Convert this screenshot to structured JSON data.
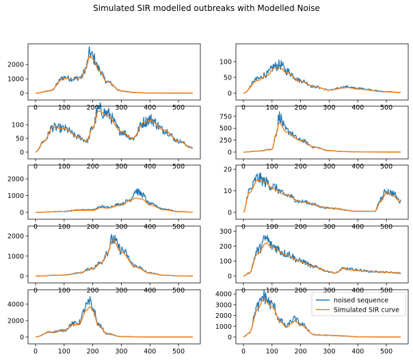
{
  "title": "Simulated SIR modelled outbreaks with Modelled Noise",
  "colors": {
    "noised": "#1f77b4",
    "sir": "#ff7f0e",
    "frame": "#000000"
  },
  "legend": {
    "placement": "top-right of last subplot",
    "entries": [
      "noised sequence",
      "Simulated SIR curve"
    ]
  },
  "chart_data": [
    {
      "type": "line",
      "xlim": [
        0,
        550
      ],
      "xticks": [
        0,
        100,
        200,
        300,
        400,
        500
      ],
      "ylim": [
        0,
        3300
      ],
      "yticks": [
        0,
        1000,
        2000
      ],
      "series": [
        {
          "name": "noised sequence",
          "noisy": true,
          "x": [
            0,
            50,
            100,
            130,
            160,
            175,
            190,
            205,
            220,
            250,
            300,
            350,
            400,
            500,
            550
          ],
          "y": [
            0,
            160,
            1100,
            1000,
            1100,
            1700,
            2800,
            2400,
            1700,
            800,
            150,
            40,
            10,
            0,
            0
          ]
        },
        {
          "name": "Simulated SIR curve",
          "x": [
            0,
            50,
            100,
            130,
            160,
            175,
            190,
            205,
            220,
            250,
            300,
            350,
            400,
            500,
            550
          ],
          "y": [
            0,
            160,
            1050,
            950,
            1100,
            1700,
            2600,
            2300,
            1600,
            800,
            150,
            40,
            10,
            0,
            0
          ]
        }
      ]
    },
    {
      "type": "line",
      "xlim": [
        0,
        550
      ],
      "xticks": [
        0,
        100,
        200,
        300,
        400,
        500
      ],
      "ylim": [
        0,
        150
      ],
      "yticks": [
        0,
        50,
        100
      ],
      "series": [
        {
          "name": "noised sequence",
          "noisy": true,
          "x": [
            0,
            50,
            80,
            110,
            130,
            150,
            200,
            250,
            300,
            360,
            400,
            500,
            550
          ],
          "y": [
            0,
            45,
            60,
            85,
            90,
            70,
            40,
            20,
            10,
            20,
            15,
            5,
            2
          ]
        },
        {
          "name": "Simulated SIR curve",
          "x": [
            0,
            50,
            80,
            110,
            130,
            150,
            200,
            250,
            300,
            360,
            400,
            500,
            550
          ],
          "y": [
            0,
            40,
            55,
            80,
            80,
            65,
            38,
            20,
            10,
            18,
            13,
            4,
            2
          ]
        }
      ]
    },
    {
      "type": "line",
      "xlim": [
        0,
        550
      ],
      "xticks": [
        0,
        100,
        200,
        300,
        400,
        500
      ],
      "ylim": [
        0,
        160
      ],
      "yticks": [
        0,
        50,
        100
      ],
      "series": [
        {
          "name": "noised sequence",
          "noisy": true,
          "x": [
            0,
            30,
            60,
            100,
            150,
            180,
            200,
            220,
            250,
            300,
            340,
            380,
            400,
            450,
            500,
            550
          ],
          "y": [
            0,
            40,
            90,
            85,
            55,
            40,
            90,
            155,
            140,
            75,
            50,
            110,
            120,
            80,
            40,
            15
          ]
        },
        {
          "name": "Simulated SIR curve",
          "x": [
            0,
            30,
            60,
            100,
            150,
            180,
            200,
            220,
            250,
            300,
            340,
            380,
            400,
            450,
            500,
            550
          ],
          "y": [
            0,
            40,
            90,
            85,
            55,
            40,
            90,
            150,
            135,
            75,
            50,
            110,
            115,
            80,
            40,
            15
          ]
        }
      ]
    },
    {
      "type": "line",
      "xlim": [
        0,
        550
      ],
      "xticks": [
        0,
        100,
        200,
        300,
        400,
        500
      ],
      "ylim": [
        0,
        920
      ],
      "yticks": [
        0,
        250,
        500,
        750
      ],
      "series": [
        {
          "name": "noised sequence",
          "noisy": true,
          "x": [
            0,
            50,
            100,
            115,
            125,
            150,
            200,
            250,
            300,
            350,
            400,
            500,
            550
          ],
          "y": [
            0,
            20,
            60,
            400,
            750,
            450,
            250,
            100,
            30,
            10,
            5,
            0,
            0
          ]
        },
        {
          "name": "Simulated SIR curve",
          "x": [
            0,
            50,
            100,
            115,
            125,
            150,
            200,
            250,
            300,
            350,
            400,
            500,
            550
          ],
          "y": [
            0,
            20,
            60,
            380,
            620,
            420,
            240,
            100,
            30,
            10,
            5,
            0,
            0
          ]
        }
      ]
    },
    {
      "type": "line",
      "xlim": [
        0,
        550
      ],
      "xticks": [
        0,
        100,
        200,
        300,
        400,
        500
      ],
      "ylim": [
        0,
        2700
      ],
      "yticks": [
        0,
        1000,
        2000
      ],
      "series": [
        {
          "name": "noised sequence",
          "noisy": true,
          "x": [
            0,
            100,
            150,
            200,
            230,
            250,
            300,
            330,
            350,
            370,
            400,
            450,
            500,
            550
          ],
          "y": [
            0,
            60,
            150,
            150,
            350,
            300,
            500,
            750,
            1300,
            1100,
            500,
            200,
            50,
            10
          ]
        },
        {
          "name": "Simulated SIR curve",
          "x": [
            0,
            100,
            150,
            200,
            230,
            250,
            300,
            330,
            350,
            370,
            400,
            450,
            500,
            550
          ],
          "y": [
            0,
            50,
            120,
            120,
            280,
            250,
            450,
            700,
            850,
            800,
            450,
            150,
            40,
            10
          ]
        }
      ]
    },
    {
      "type": "line",
      "xlim": [
        0,
        550
      ],
      "xticks": [
        0,
        100,
        200,
        300,
        400,
        500
      ],
      "ylim": [
        0,
        21
      ],
      "yticks": [
        0,
        10,
        20
      ],
      "series": [
        {
          "name": "noised sequence",
          "noisy": true,
          "x": [
            0,
            20,
            50,
            80,
            100,
            150,
            200,
            300,
            400,
            460,
            480,
            500,
            520,
            550
          ],
          "y": [
            0,
            10,
            16,
            14,
            12,
            8,
            5,
            2,
            0.5,
            0.5,
            6,
            10,
            9,
            5
          ]
        },
        {
          "name": "Simulated SIR curve",
          "x": [
            0,
            20,
            50,
            80,
            100,
            150,
            200,
            300,
            400,
            460,
            480,
            500,
            520,
            550
          ],
          "y": [
            0,
            9,
            15,
            14,
            11,
            8,
            5,
            2,
            0.5,
            0.5,
            5,
            9,
            8,
            5
          ]
        }
      ]
    },
    {
      "type": "line",
      "xlim": [
        0,
        550
      ],
      "xticks": [
        0,
        100,
        200,
        300,
        400,
        500
      ],
      "ylim": [
        0,
        2400
      ],
      "yticks": [
        0,
        1000,
        2000
      ],
      "series": [
        {
          "name": "noised sequence",
          "noisy": true,
          "x": [
            0,
            100,
            150,
            200,
            230,
            250,
            270,
            300,
            350,
            400,
            450,
            500,
            550
          ],
          "y": [
            0,
            50,
            150,
            400,
            700,
            1200,
            1850,
            1300,
            500,
            150,
            40,
            10,
            0
          ]
        },
        {
          "name": "Simulated SIR curve",
          "x": [
            0,
            100,
            150,
            200,
            230,
            250,
            270,
            300,
            350,
            400,
            450,
            500,
            550
          ],
          "y": [
            0,
            50,
            150,
            380,
            650,
            1100,
            1800,
            1200,
            450,
            140,
            40,
            10,
            0
          ]
        }
      ]
    },
    {
      "type": "line",
      "xlim": [
        0,
        550
      ],
      "xticks": [
        0,
        100,
        200,
        300,
        400,
        500
      ],
      "ylim": [
        0,
        320
      ],
      "yticks": [
        0,
        100,
        200,
        300
      ],
      "series": [
        {
          "name": "noised sequence",
          "noisy": true,
          "x": [
            0,
            20,
            50,
            80,
            100,
            150,
            200,
            250,
            300,
            320,
            350,
            380,
            400,
            450,
            500,
            550
          ],
          "y": [
            0,
            20,
            170,
            250,
            200,
            150,
            100,
            60,
            30,
            20,
            50,
            45,
            40,
            30,
            25,
            20
          ]
        },
        {
          "name": "Simulated SIR curve",
          "x": [
            0,
            20,
            50,
            80,
            100,
            150,
            200,
            250,
            300,
            320,
            350,
            380,
            400,
            450,
            500,
            550
          ],
          "y": [
            0,
            20,
            150,
            220,
            190,
            140,
            95,
            60,
            30,
            20,
            50,
            40,
            35,
            30,
            25,
            20
          ]
        }
      ]
    },
    {
      "type": "line",
      "xlim": [
        0,
        550
      ],
      "xticks": [
        0,
        100,
        200,
        300,
        400,
        500
      ],
      "ylim": [
        0,
        5500
      ],
      "yticks": [
        0,
        2000,
        4000
      ],
      "series": [
        {
          "name": "noised sequence",
          "noisy": true,
          "x": [
            0,
            50,
            100,
            130,
            150,
            180,
            190,
            200,
            220,
            250,
            300,
            400,
            550
          ],
          "y": [
            0,
            600,
            800,
            1600,
            1700,
            3800,
            4200,
            3500,
            1500,
            400,
            50,
            0,
            0
          ]
        },
        {
          "name": "Simulated SIR curve",
          "x": [
            0,
            50,
            100,
            130,
            150,
            180,
            190,
            200,
            220,
            250,
            300,
            400,
            550
          ],
          "y": [
            0,
            600,
            750,
            1500,
            1500,
            3300,
            3700,
            3200,
            1400,
            400,
            50,
            0,
            0
          ]
        }
      ]
    },
    {
      "type": "line",
      "xlim": [
        0,
        550
      ],
      "xticks": [
        0,
        100,
        200,
        300,
        400,
        500
      ],
      "ylim": [
        0,
        4200
      ],
      "yticks": [
        0,
        1000,
        2000,
        3000,
        4000
      ],
      "series": [
        {
          "name": "noised sequence",
          "noisy": true,
          "x": [
            0,
            20,
            50,
            70,
            100,
            130,
            150,
            170,
            180,
            200,
            250,
            300,
            350,
            400,
            500,
            550
          ],
          "y": [
            0,
            400,
            2800,
            3800,
            3000,
            1500,
            1000,
            1500,
            1700,
            1200,
            200,
            150,
            100,
            20,
            0,
            0
          ]
        },
        {
          "name": "Simulated SIR curve",
          "x": [
            0,
            20,
            50,
            70,
            100,
            130,
            150,
            170,
            180,
            200,
            250,
            300,
            350,
            400,
            500,
            550
          ],
          "y": [
            0,
            350,
            2600,
            3500,
            2800,
            1400,
            900,
            1300,
            1500,
            1100,
            200,
            150,
            100,
            20,
            0,
            0
          ]
        }
      ]
    }
  ]
}
